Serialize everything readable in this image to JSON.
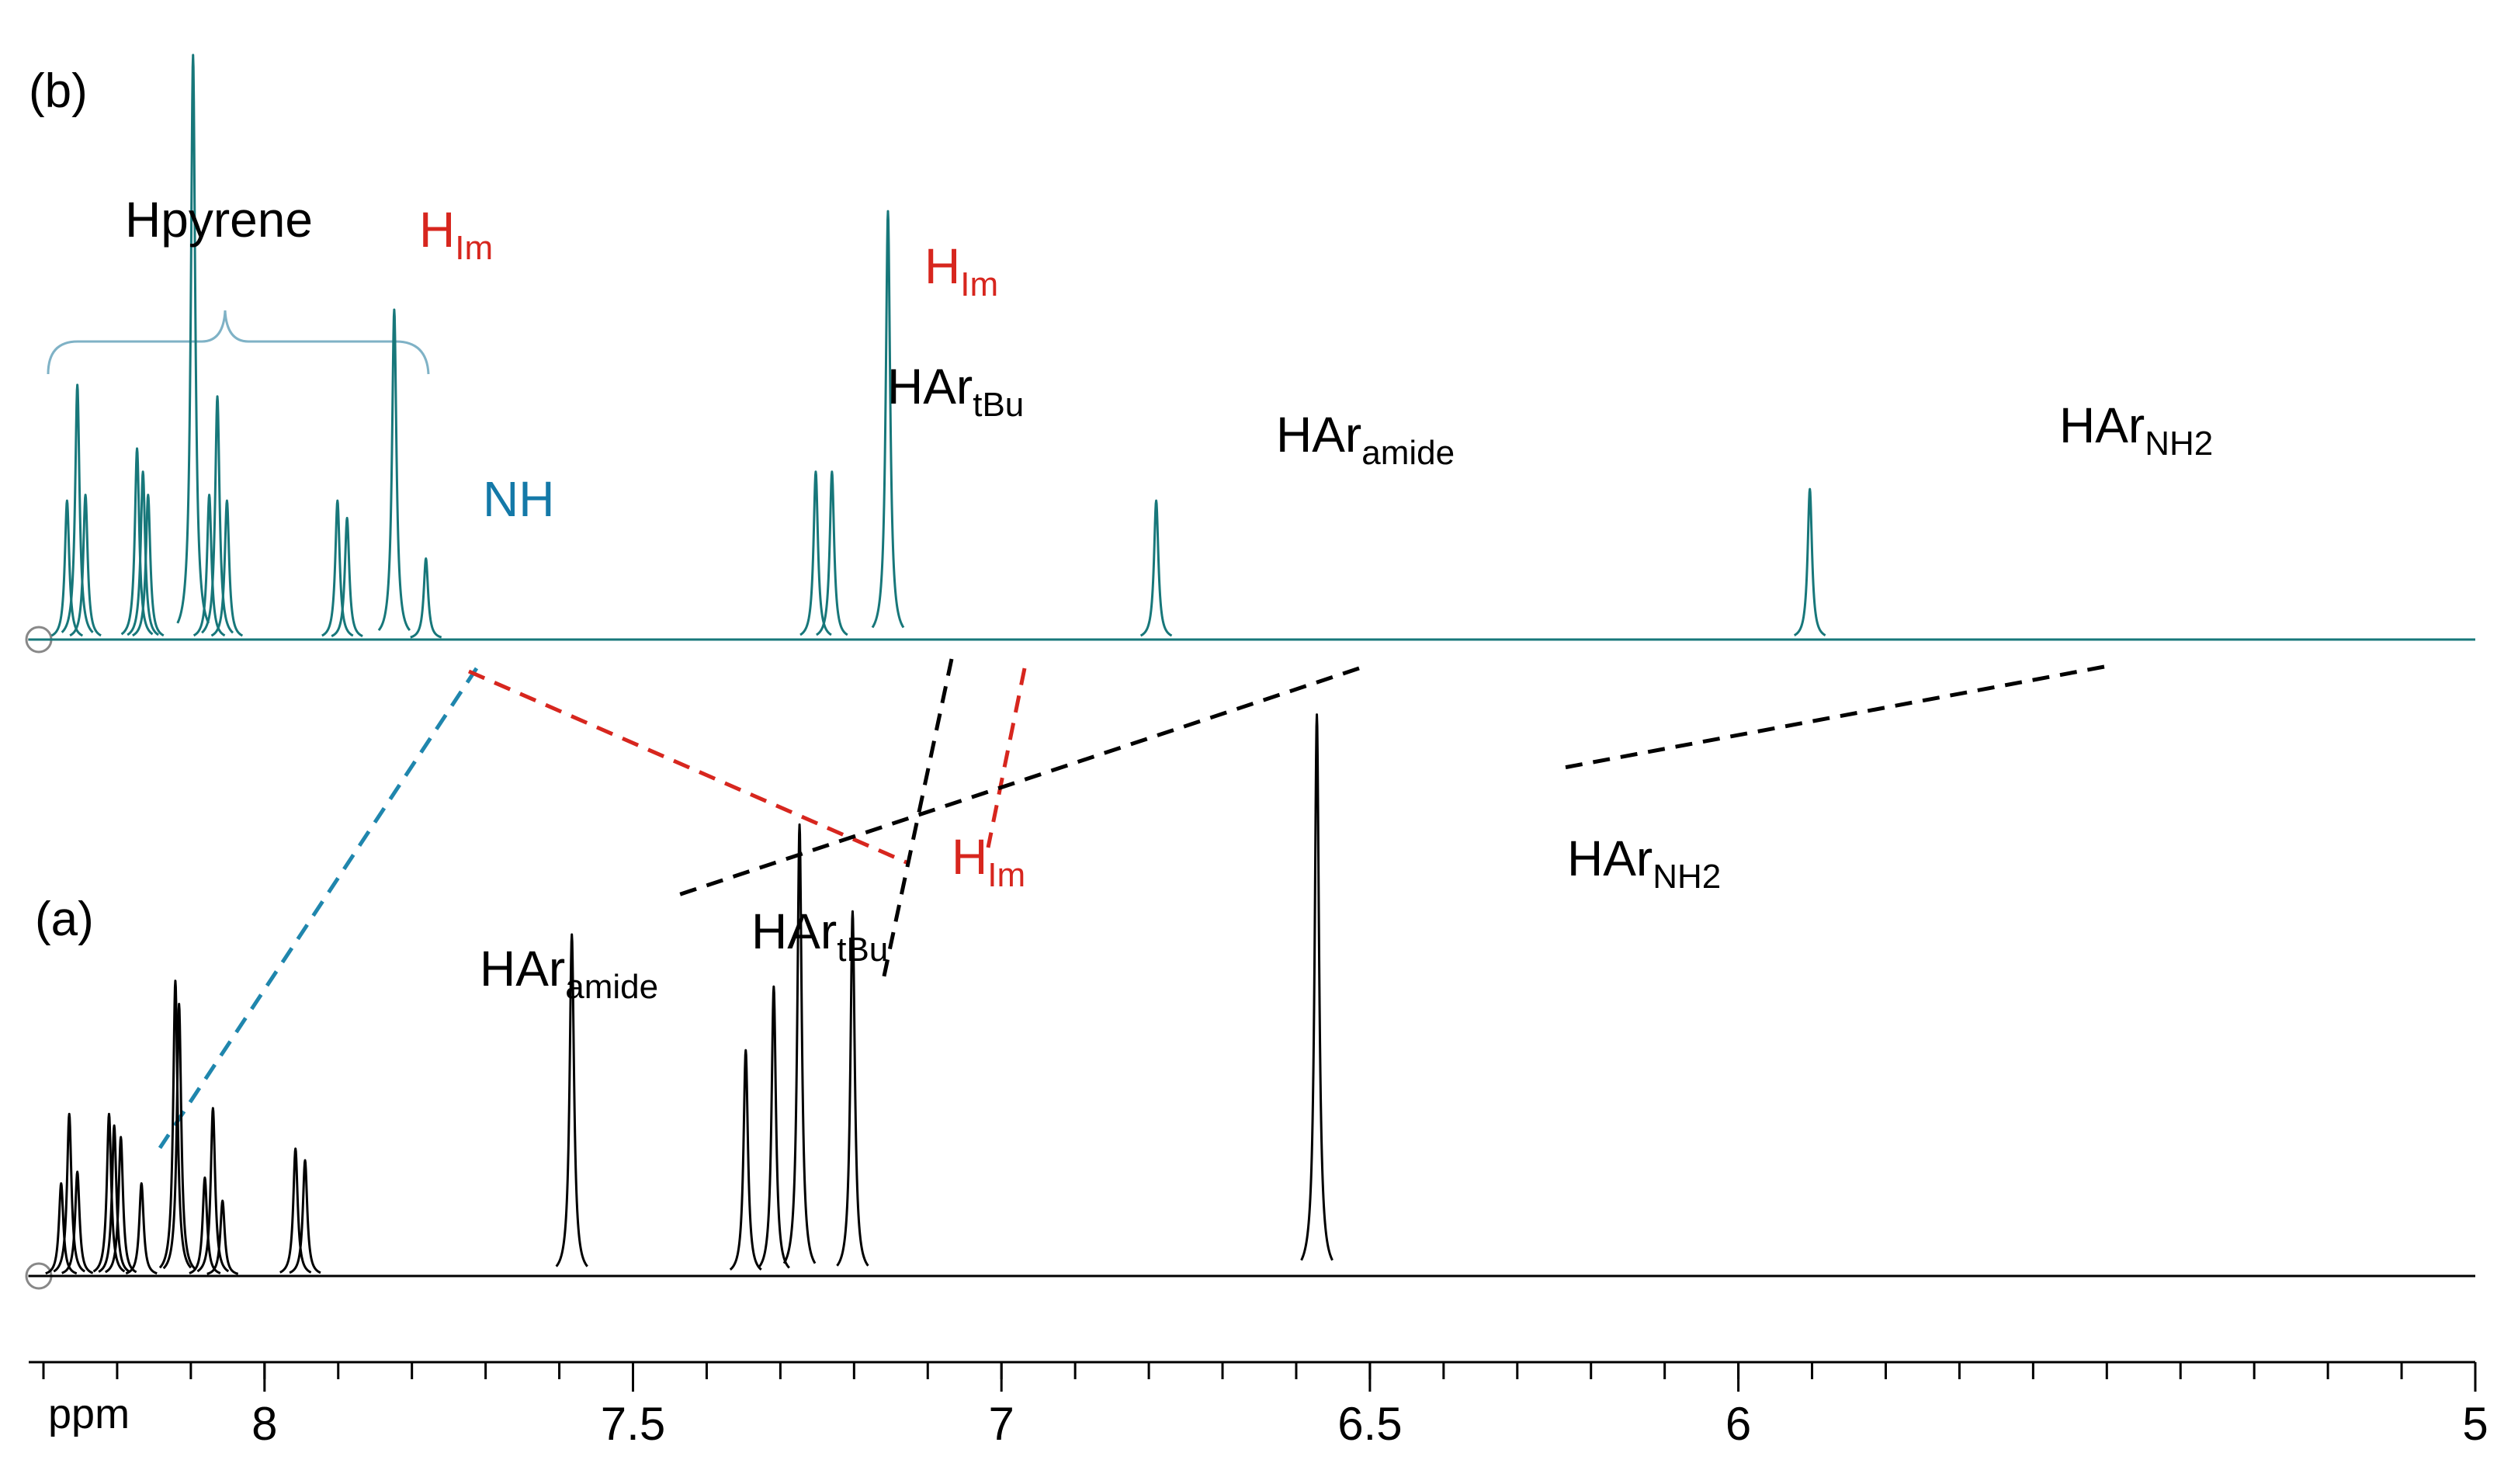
{
  "chart_data": [
    {
      "type": "line",
      "label": "(b)",
      "color": "#17777a",
      "x": [
        8.268,
        8.254,
        8.243,
        8.173,
        8.165,
        8.158,
        8.097,
        8.075,
        8.064,
        8.051,
        7.901,
        7.888,
        7.824,
        7.781,
        7.252,
        7.23,
        7.154,
        6.79,
        5.903
      ],
      "values": [
        24,
        44,
        25,
        33,
        29,
        25,
        101,
        25,
        42,
        24,
        24,
        21,
        57,
        14,
        29,
        29,
        74,
        24,
        26
      ],
      "xlim": [
        8.32,
        5
      ],
      "ylim": [
        0,
        105
      ],
      "annotations": [
        {
          "text": "Hpyrene",
          "color": "#000000"
        },
        {
          "text": "H",
          "sub": "Im",
          "color": "#d7261e"
        },
        {
          "text": "NH",
          "color": "#1479a8"
        },
        {
          "text": "H",
          "sub": "Im",
          "color": "#d7261e"
        },
        {
          "text": "HAr",
          "sub": "tBu",
          "color": "#000000"
        },
        {
          "text": "HAr",
          "sub": "amide",
          "color": "#000000"
        },
        {
          "text": "HAr",
          "sub": "NH2",
          "color": "#000000"
        }
      ]
    },
    {
      "type": "line",
      "label": "(a)",
      "color": "#000000",
      "x": [
        8.276,
        8.265,
        8.254,
        8.211,
        8.204,
        8.195,
        8.167,
        8.121,
        8.116,
        8.081,
        8.07,
        8.057,
        7.958,
        7.945,
        7.583,
        7.347,
        7.309,
        7.274,
        7.202,
        6.572
      ],
      "values": [
        16,
        28,
        18,
        28,
        26,
        24,
        16,
        51,
        47,
        17,
        29,
        13,
        22,
        20,
        59,
        39,
        50,
        78,
        63,
        97
      ],
      "xlim": [
        8.32,
        5
      ],
      "ylim": [
        0,
        105
      ],
      "xlabel": "ppm",
      "xticks": [
        8,
        7.5,
        7,
        6.5,
        6,
        5
      ],
      "x_minor_ticks": [
        8.3,
        8.2,
        8.1,
        8,
        7.9,
        7.8,
        7.7,
        7.6,
        7.5,
        7.4,
        7.3,
        7.2,
        7.1,
        7,
        6.9,
        6.8,
        6.7,
        6.6,
        6.5,
        6.4,
        6.3,
        6.2,
        6.1,
        6,
        5.9,
        5.8,
        5.7,
        5.6,
        5.5,
        5.4,
        5.3,
        5.2,
        5.1,
        5
      ],
      "annotations": [
        {
          "text": "HAr",
          "sub": "amide",
          "color": "#000000"
        },
        {
          "text": "HAr",
          "sub": "tBu",
          "color": "#000000"
        },
        {
          "text": "H",
          "sub": "Im",
          "color": "#d7261e"
        },
        {
          "text": "HAr",
          "sub": "NH2",
          "color": "#000000"
        }
      ]
    }
  ]
}
